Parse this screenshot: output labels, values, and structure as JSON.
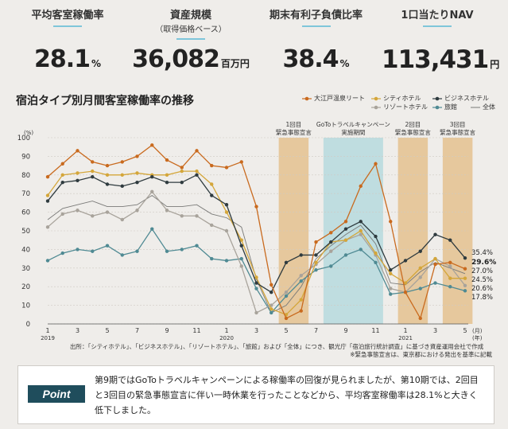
{
  "kpis": [
    {
      "label": "平均客室稼働率",
      "sublabel": "",
      "value": "28.1",
      "unit": "%"
    },
    {
      "label": "資産規模",
      "sublabel": "（取得価格ベース）",
      "value": "36,082",
      "unit": "百万円"
    },
    {
      "label": "期末有利子負債比率",
      "sublabel": "",
      "value": "38.4",
      "unit": "%"
    },
    {
      "label": "1口当たりNAV",
      "sublabel": "",
      "value": "113,431",
      "unit": "円"
    }
  ],
  "chart_title": "宿泊タイプ別月間客室稼働率の推移",
  "colors": {
    "oedo": "#c96a1e",
    "city": "#d4a63a",
    "biz": "#2f3b3f",
    "resort": "#a8a39b",
    "ryokan": "#4f8a93",
    "all": "#7a7a78",
    "band": "#e6c89d",
    "gotoband": "#bfdde0"
  },
  "chart_data": {
    "type": "line",
    "title": "宿泊タイプ別月間客室稼働率の推移",
    "yunit": "(%)",
    "ylim": [
      0,
      100
    ],
    "yticks": [
      0,
      10,
      20,
      30,
      40,
      50,
      60,
      70,
      80,
      90,
      100
    ],
    "x": [
      1,
      2,
      3,
      4,
      5,
      6,
      7,
      8,
      9,
      10,
      11,
      12,
      13,
      14,
      15,
      16,
      17,
      18,
      19,
      20,
      21,
      22,
      23,
      24,
      25,
      26,
      27,
      28,
      29
    ],
    "xtick_labels": [
      {
        "x": 1,
        "label": "1"
      },
      {
        "x": 3,
        "label": "3"
      },
      {
        "x": 5,
        "label": "5"
      },
      {
        "x": 7,
        "label": "7"
      },
      {
        "x": 9,
        "label": "9"
      },
      {
        "x": 11,
        "label": "11"
      },
      {
        "x": 13,
        "label": "1"
      },
      {
        "x": 15,
        "label": "3"
      },
      {
        "x": 17,
        "label": "5"
      },
      {
        "x": 19,
        "label": "7"
      },
      {
        "x": 21,
        "label": "9"
      },
      {
        "x": 23,
        "label": "11"
      },
      {
        "x": 25,
        "label": "1"
      },
      {
        "x": 27,
        "label": "3"
      },
      {
        "x": 29,
        "label": "5"
      }
    ],
    "xunit": "(月)",
    "xunit2": "(年)",
    "year_labels": [
      {
        "x": 1,
        "label": "2019"
      },
      {
        "x": 13,
        "label": "2020"
      },
      {
        "x": 25,
        "label": "2021"
      }
    ],
    "bands": [
      {
        "from": 16.5,
        "to": 18.5,
        "label": [
          "1回目",
          "緊急事態宣言"
        ],
        "kind": "band"
      },
      {
        "from": 19.5,
        "to": 23.5,
        "label": [
          "GoToトラベルキャンペーン",
          "実施期間"
        ],
        "kind": "gotoband"
      },
      {
        "from": 24.5,
        "to": 26.5,
        "label": [
          "2回目",
          "緊急事態宣言"
        ],
        "kind": "band"
      },
      {
        "from": 27.5,
        "to": 29.5,
        "label": [
          "3回目",
          "緊急事態宣言"
        ],
        "kind": "band"
      }
    ],
    "series": [
      {
        "name": "大江戸温泉リート",
        "key": "oedo",
        "marker": "circle",
        "end_label": "29.6%",
        "values": [
          79,
          86,
          93,
          87,
          85,
          87,
          90,
          96,
          88,
          84,
          93,
          85,
          84,
          87,
          63,
          21,
          3,
          7,
          44,
          49,
          55,
          74,
          86,
          55,
          17,
          3,
          32,
          33,
          29.6
        ]
      },
      {
        "name": "シティホテル",
        "key": "city",
        "marker": "circle",
        "end_label": "24.5%",
        "values": [
          69,
          80,
          81,
          82,
          80,
          80,
          81,
          80,
          80,
          82,
          82,
          75,
          60,
          45,
          25,
          8,
          5,
          13,
          33,
          44,
          45,
          50,
          38,
          27,
          22,
          30,
          35,
          24.5,
          24.5
        ]
      },
      {
        "name": "ビジネスホテル",
        "key": "biz",
        "marker": "circle",
        "end_label": "35.4%",
        "values": [
          66,
          76,
          77,
          79,
          75,
          74,
          76,
          79,
          76,
          76,
          80,
          69,
          64,
          42,
          22,
          17,
          33,
          37,
          37,
          44,
          51,
          55,
          47,
          29,
          34,
          39,
          48,
          45,
          35.4
        ]
      },
      {
        "name": "リゾートホテル",
        "key": "resort",
        "marker": "circle",
        "end_label": "20.6%",
        "values": [
          52,
          59,
          61,
          58,
          60,
          56,
          61,
          71,
          61,
          58,
          58,
          53,
          50,
          31,
          6,
          10,
          17,
          26,
          32,
          39,
          45,
          48,
          37,
          19,
          17,
          25,
          35,
          31,
          20.6
        ]
      },
      {
        "name": "旅館",
        "key": "ryokan",
        "marker": "circle",
        "end_label": "17.8%",
        "values": [
          34,
          38,
          40,
          39,
          42,
          37,
          39,
          51,
          39,
          40,
          42,
          35,
          34,
          35,
          19,
          6,
          15,
          23,
          29,
          31,
          37,
          40,
          33,
          16,
          17,
          19,
          22,
          20,
          17.8
        ]
      },
      {
        "name": "全体",
        "key": "all",
        "marker": "none",
        "end_label": "27.0%",
        "values": [
          56,
          62,
          64,
          66,
          63,
          63,
          64,
          69,
          63,
          63,
          64,
          59,
          57,
          52,
          24,
          6,
          10,
          20,
          35,
          42,
          48,
          53,
          43,
          22,
          21,
          28,
          33,
          30,
          27.0
        ]
      }
    ]
  },
  "source": "出所：「シティホテル」、「ビジネスホテル」、「リゾートホテル」、「旅館」および「全体」につき、観光庁「宿泊旅行統計調査」に基づき資産運用会社で作成",
  "note": "※緊急事態宣言は、東京都における発出を基準に記載",
  "point_badge": "Point",
  "point_text": "第9期ではGoToトラベルキャンペーンによる稼働率の回復が見られましたが、第10期では、2回目と3回目の緊急事態宣言に伴い一時休業を行ったことなどから、平均客室稼働率は28.1%と大きく低下しました。"
}
